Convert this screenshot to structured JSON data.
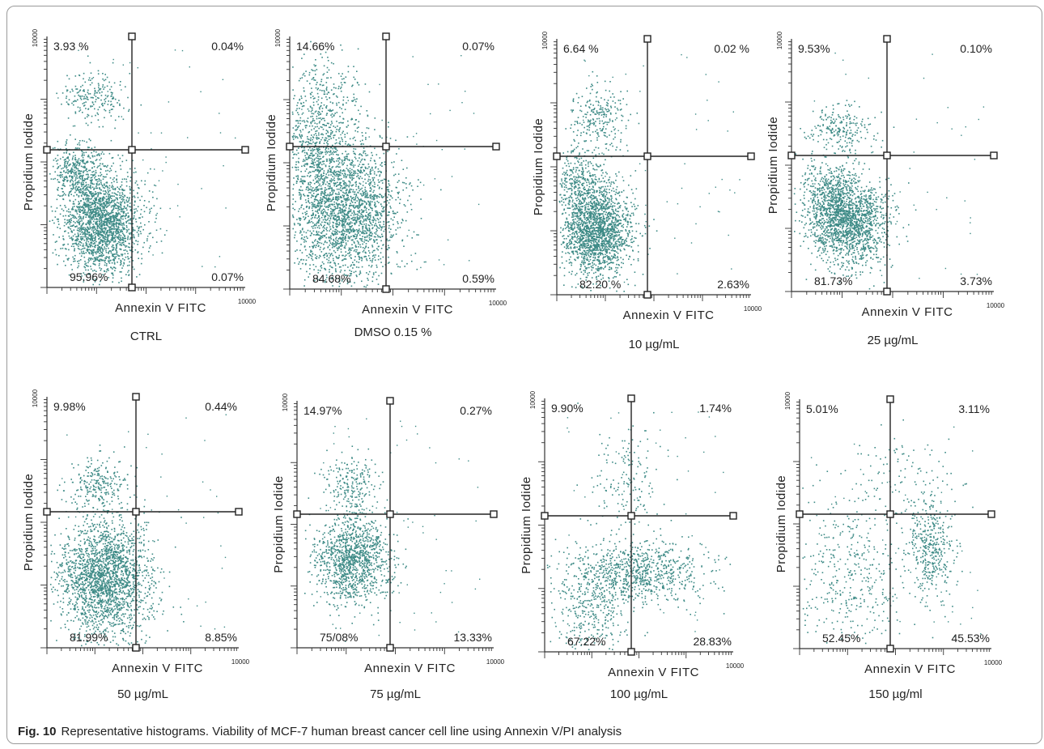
{
  "caption": {
    "label": "Fig. 10",
    "text": "Representative histograms. Viability of MCF-7 human breast cancer cell line using Annexin V/PI analysis"
  },
  "colors": {
    "dots": "#3d8a86",
    "axis": "#333333",
    "gate": "#222222"
  },
  "chart_data": [
    {
      "type": "scatter",
      "title": "CTRL",
      "xlabel": "Annexin V FITC",
      "ylabel": "Propidium Iodide",
      "x_scale": "log",
      "y_scale": "log",
      "x_max_label": "10000",
      "y_max_label": "10000",
      "quadrants": {
        "upper_left": "3.93 %",
        "upper_right": "0.04%",
        "lower_left": "95.96%",
        "lower_right": "0.07%"
      }
    },
    {
      "type": "scatter",
      "title": "DMSO 0.15 %",
      "xlabel": "Annexin V FITC",
      "ylabel": "Propidium Iodide",
      "x_scale": "log",
      "y_scale": "log",
      "x_max_label": "10000",
      "y_max_label": "10000",
      "quadrants": {
        "upper_left": "14.66%",
        "upper_right": "0.07%",
        "lower_left": "84.68%",
        "lower_right": "0.59%"
      }
    },
    {
      "type": "scatter",
      "title": "10 µg/mL",
      "xlabel": "Annexin V FITC",
      "ylabel": "Propidium Iodide",
      "x_scale": "log",
      "y_scale": "log",
      "x_max_label": "10000",
      "y_max_label": "10000",
      "quadrants": {
        "upper_left": "6.64 %",
        "upper_right": "0.02 %",
        "lower_left": "82.20 %",
        "lower_right": "2.63%"
      }
    },
    {
      "type": "scatter",
      "title": "25 µg/mL",
      "xlabel": "Annexin V FITC",
      "ylabel": "Propidium Iodide",
      "x_scale": "log",
      "y_scale": "log",
      "x_max_label": "10000",
      "y_max_label": "10000",
      "quadrants": {
        "upper_left": "9.53%",
        "upper_right": "0.10%",
        "lower_left": "81.73%",
        "lower_right": "3.73%"
      }
    },
    {
      "type": "scatter",
      "title": "50 µg/mL",
      "xlabel": "Annexin V FITC",
      "ylabel": "Propidium Iodide",
      "x_scale": "log",
      "y_scale": "log",
      "x_max_label": "10000",
      "y_max_label": "10000",
      "quadrants": {
        "upper_left": "9.98%",
        "upper_right": "0.44%",
        "lower_left": "81.99%",
        "lower_right": "8.85%"
      }
    },
    {
      "type": "scatter",
      "title": "75 µg/mL",
      "xlabel": "Annexin V FITC",
      "ylabel": "Propidium Iodide",
      "x_scale": "log",
      "y_scale": "log",
      "x_max_label": "10000",
      "y_max_label": "10000",
      "quadrants": {
        "upper_left": "14.97%",
        "upper_right": "0.27%",
        "lower_left": "75/08%",
        "lower_right": "13.33%"
      }
    },
    {
      "type": "scatter",
      "title": "100 µg/mL",
      "xlabel": "Annexin V FITC",
      "ylabel": "Propidium Iodide",
      "x_scale": "log",
      "y_scale": "log",
      "x_max_label": "10000",
      "y_max_label": "10000",
      "quadrants": {
        "upper_left": "9.90%",
        "upper_right": "1.74%",
        "lower_left": "67.22%",
        "lower_right": "28.83%"
      }
    },
    {
      "type": "scatter",
      "title": "150 µg/ml",
      "xlabel": "Annexin V FITC",
      "ylabel": "Propidium Iodide",
      "x_scale": "log",
      "y_scale": "log",
      "x_max_label": "10000",
      "y_max_label": "10000",
      "quadrants": {
        "upper_left": "5.01%",
        "upper_right": "3.11%",
        "lower_left": "52.45%",
        "lower_right": "45.53%"
      }
    }
  ]
}
